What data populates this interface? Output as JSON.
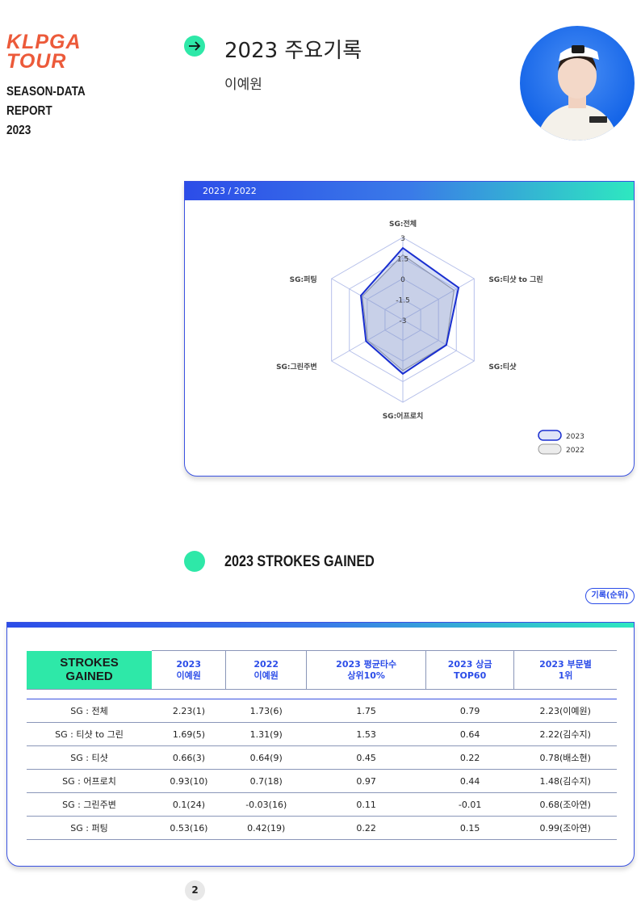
{
  "brand": {
    "logo_line1": "KLPGA",
    "logo_line2": "TOUR",
    "report_line1": "SEASON-DATA",
    "report_line2": "REPORT",
    "report_line3": "2023"
  },
  "header": {
    "title": "2023 주요기록",
    "player": "이예원",
    "accent_color": "#2ee8a8"
  },
  "radar": {
    "tab_label": "2023 / 2022",
    "legend": [
      "2023",
      "2022"
    ]
  },
  "chart_data": {
    "type": "radar",
    "axes": [
      "SG:전체",
      "SG:티샷 to 그린",
      "SG:티샷",
      "SG:어프로치",
      "SG:그린주변",
      "SG:퍼팅"
    ],
    "rlim": [
      -3,
      3
    ],
    "ticks": [
      "3",
      "1.5",
      "0",
      "-1.5",
      "-3"
    ],
    "series": [
      {
        "name": "2023",
        "values": [
          2.23,
          1.69,
          0.66,
          0.93,
          0.1,
          0.53
        ],
        "color": "#1a2fd0"
      },
      {
        "name": "2022",
        "values": [
          1.73,
          1.31,
          0.64,
          0.7,
          -0.03,
          0.42
        ],
        "color": "#999999"
      }
    ],
    "legend_position": "bottom-right"
  },
  "sg_section": {
    "title": "2023 STROKES GAINED",
    "badge": "기록(순위)"
  },
  "table": {
    "corner_label_1": "STROKES",
    "corner_label_2": "GAINED",
    "headers": [
      {
        "line1": "2023",
        "line2": "이예원"
      },
      {
        "line1": "2022",
        "line2": "이예원"
      },
      {
        "line1": "2023 평균타수",
        "line2": "상위10%"
      },
      {
        "line1": "2023 상금",
        "line2": "TOP60"
      },
      {
        "line1": "2023 부문별",
        "line2": "1위"
      }
    ],
    "rows": [
      [
        "SG : 전체",
        "2.23(1)",
        "1.73(6)",
        "1.75",
        "0.79",
        "2.23(이예원)"
      ],
      [
        "SG : 티샷 to 그린",
        "1.69(5)",
        "1.31(9)",
        "1.53",
        "0.64",
        "2.22(김수지)"
      ],
      [
        "SG : 티샷",
        "0.66(3)",
        "0.64(9)",
        "0.45",
        "0.22",
        "0.78(배소현)"
      ],
      [
        "SG : 어프로치",
        "0.93(10)",
        "0.7(18)",
        "0.97",
        "0.44",
        "1.48(김수지)"
      ],
      [
        "SG : 그린주변",
        "0.1(24)",
        "-0.03(16)",
        "0.11",
        "-0.01",
        "0.68(조아연)"
      ],
      [
        "SG : 퍼팅",
        "0.53(16)",
        "0.42(19)",
        "0.22",
        "0.15",
        "0.99(조아연)"
      ]
    ]
  },
  "page_number": "2"
}
